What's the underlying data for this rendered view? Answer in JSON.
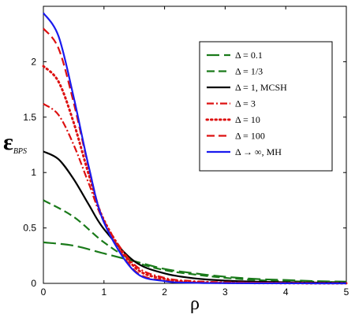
{
  "chart_data": {
    "type": "line",
    "title": "",
    "xlabel": "ρ",
    "ylabel": "ε",
    "ylabel_sub": "BPS",
    "xlim": [
      0,
      5
    ],
    "ylim": [
      0,
      2.5
    ],
    "xticks": [
      "0",
      "1",
      "2",
      "3",
      "4",
      "5"
    ],
    "yticks": [
      "0",
      "0.5",
      "1",
      "1.5",
      "2"
    ],
    "grid": false,
    "legend_position": "top-right",
    "series": [
      {
        "label": "Δ = 0.1",
        "color": "#1a7a1a",
        "style": "long-dash",
        "x": [
          0,
          0.5,
          1,
          1.5,
          2,
          2.5,
          3,
          3.5,
          4,
          4.5,
          5
        ],
        "y": [
          0.37,
          0.34,
          0.27,
          0.2,
          0.13,
          0.09,
          0.06,
          0.04,
          0.03,
          0.02,
          0.015
        ]
      },
      {
        "label": "Δ = 1/3",
        "color": "#1a7a1a",
        "style": "dash",
        "x": [
          0,
          0.5,
          1,
          1.5,
          2,
          2.5,
          3,
          3.5,
          4,
          4.5,
          5
        ],
        "y": [
          0.75,
          0.6,
          0.37,
          0.2,
          0.12,
          0.08,
          0.05,
          0.03,
          0.02,
          0.015,
          0.01
        ]
      },
      {
        "label": "Δ = 1, MCSH",
        "color": "#000000",
        "style": "solid",
        "x": [
          0,
          0.25,
          0.5,
          0.75,
          1,
          1.5,
          2,
          2.5,
          3,
          3.5,
          4,
          4.5,
          5
        ],
        "y": [
          1.19,
          1.12,
          0.94,
          0.71,
          0.49,
          0.2,
          0.09,
          0.045,
          0.025,
          0.015,
          0.01,
          0.007,
          0.005
        ]
      },
      {
        "label": "Δ = 3",
        "color": "#dd1111",
        "style": "dash-dot",
        "x": [
          0,
          0.25,
          0.5,
          0.75,
          1,
          1.5,
          2,
          2.5,
          3,
          3.5,
          4,
          4.5,
          5
        ],
        "y": [
          1.62,
          1.52,
          1.25,
          0.9,
          0.56,
          0.17,
          0.05,
          0.02,
          0.01,
          0.006,
          0.004,
          0.003,
          0.002
        ]
      },
      {
        "label": "Δ = 10",
        "color": "#dd1111",
        "style": "dotted",
        "x": [
          0,
          0.25,
          0.5,
          0.75,
          1,
          1.5,
          2,
          2.5,
          3,
          3.5,
          4,
          4.5,
          5
        ],
        "y": [
          1.96,
          1.82,
          1.45,
          0.98,
          0.57,
          0.15,
          0.04,
          0.012,
          0.005,
          0.003,
          0.002,
          0.001,
          0.001
        ]
      },
      {
        "label": "Δ = 100",
        "color": "#dd1111",
        "style": "dash",
        "x": [
          0,
          0.25,
          0.5,
          0.75,
          1,
          1.5,
          2,
          2.5,
          3,
          3.5,
          4,
          4.5,
          5
        ],
        "y": [
          2.3,
          2.12,
          1.63,
          1.04,
          0.56,
          0.12,
          0.025,
          0.007,
          0.003,
          0.002,
          0.001,
          0.001,
          0.001
        ]
      },
      {
        "label": "Δ → ∞, MH",
        "color": "#1a1aee",
        "style": "solid",
        "x": [
          0,
          0.25,
          0.5,
          0.75,
          1,
          1.5,
          2,
          2.5,
          3,
          3.5,
          4,
          4.5,
          5
        ],
        "y": [
          2.44,
          2.23,
          1.68,
          1.05,
          0.55,
          0.11,
          0.02,
          0.005,
          0.002,
          0.001,
          0.001,
          0.0,
          0.0
        ]
      }
    ]
  }
}
